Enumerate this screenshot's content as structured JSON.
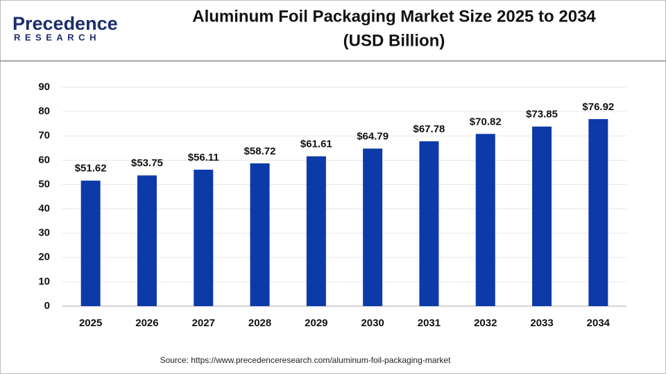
{
  "logo": {
    "name": "Precedence",
    "tagline": "RESEARCH"
  },
  "chart_data": {
    "type": "bar",
    "title": "Aluminum Foil Packaging Market Size 2025 to 2034",
    "subtitle": "(USD Billion)",
    "categories": [
      "2025",
      "2026",
      "2027",
      "2028",
      "2029",
      "2030",
      "2031",
      "2032",
      "2033",
      "2034"
    ],
    "values": [
      51.62,
      53.75,
      56.11,
      58.72,
      61.61,
      64.79,
      67.78,
      70.82,
      73.85,
      76.92
    ],
    "value_labels": [
      "$51.62",
      "$53.75",
      "$56.11",
      "$58.72",
      "$61.61",
      "$64.79",
      "$67.78",
      "$70.82",
      "$73.85",
      "$76.92"
    ],
    "color": "#0d3aa9",
    "ylim": [
      0,
      90
    ],
    "yticks": [
      0,
      10,
      20,
      30,
      40,
      50,
      60,
      70,
      80,
      90
    ],
    "grid": true,
    "source": "Source: https://www.precedenceresearch.com/aluminum-foil-packaging-market"
  }
}
